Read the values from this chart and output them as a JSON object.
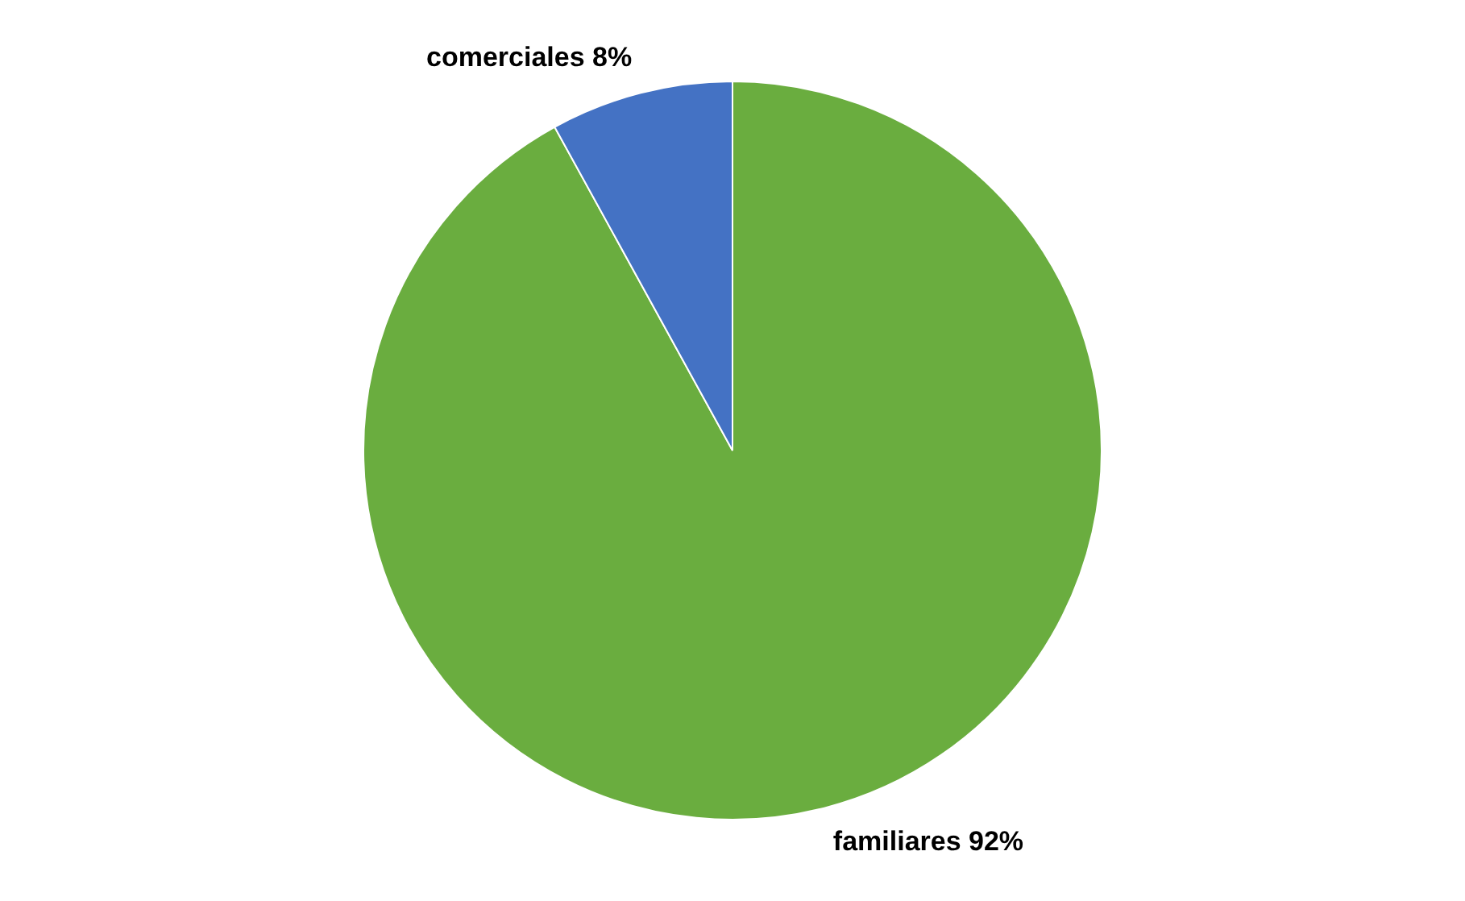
{
  "chart_data": {
    "type": "pie",
    "categories": [
      "familiares",
      "comerciales"
    ],
    "values": [
      92,
      8
    ],
    "colors": [
      "#6aad3f",
      "#4472c4"
    ],
    "value_labels": [
      "92%",
      "8%"
    ],
    "legend": false
  }
}
